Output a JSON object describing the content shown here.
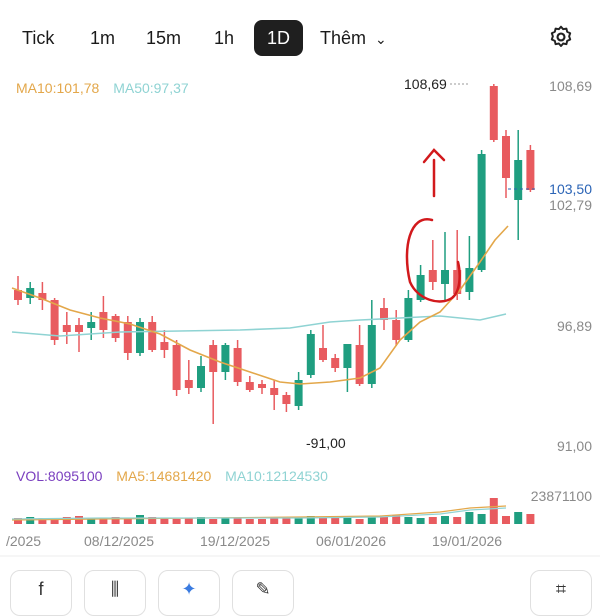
{
  "tabs": {
    "tick": "Tick",
    "m1": "1m",
    "m15": "15m",
    "h1": "1h",
    "d1": "1D",
    "more": "Thêm",
    "more_chevron": "⌄"
  },
  "legend": {
    "ma10": "MA10:101,78",
    "ma50": "MA50:97,37",
    "vol": "VOL:8095100",
    "vma5": "MA5:14681420",
    "vma10": "MA10:12124530"
  },
  "price_axis": {
    "top": "108,69",
    "last": "103,50",
    "mid": "102,79",
    "low": "96,89",
    "bottom": "91,00",
    "vol_max": "23871100"
  },
  "annotations": {
    "high": "108,69",
    "low": "-91,00",
    "last_prefix": "--"
  },
  "x_labels": {
    "l0": "/2025",
    "l1": "08/12/2025",
    "l2": "19/12/2025",
    "l3": "06/01/2026",
    "l4": "19/01/2026"
  },
  "colors": {
    "up": "#1f9e80",
    "down": "#e85b5f",
    "ma10": "#e3a74a",
    "ma50": "#8fd3d3",
    "vol_label": "#7a3fbf",
    "ma5_label": "#e3a74a",
    "ma10_label_vol": "#8fd3d3",
    "drawing": "#d2191c"
  },
  "bottom_icons": [
    "function-icon",
    "candlestick-icon",
    "sparkle-icon",
    "pencil-icon",
    "scan-icon"
  ],
  "bottom_labels": [
    "f",
    "⫼",
    "✦",
    "✎",
    "⌗"
  ]
}
